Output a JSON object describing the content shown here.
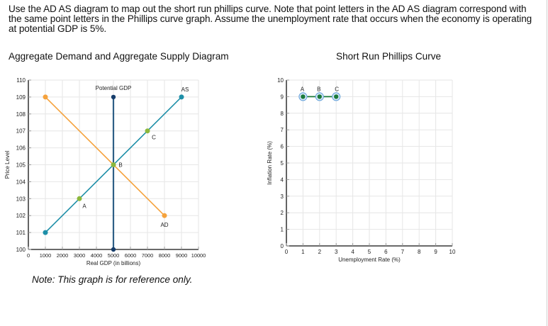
{
  "instructions": "Use the AD AS diagram to map out the short run phillips curve. Note that point letters in the AD AS diagram correspond with the same point letters in the Phillips curve graph. Assume the unemployment rate that occurs when the economy is operating at potential GDP is 5%.",
  "adas_title": "Aggregate Demand and Aggregate Supply Diagram",
  "phillips_title": "Short Run Phillips Curve",
  "note": "Note: This graph is for reference only.",
  "colors": {
    "ad": "#f5a23c",
    "as": "#1e8fa8",
    "potential_gdp": "#2e5f86",
    "potential_gdp_dot": "#163d6b",
    "point": "#8cb83c",
    "phillips_line": "#1a7a3a",
    "phillips_ring": "#6fa8dc"
  },
  "chart_data": [
    {
      "type": "line",
      "title": "Aggregate Demand and Aggregate Supply Diagram",
      "xlabel": "Real GDP (in billions)",
      "ylabel": "Price Level",
      "xlim": [
        0,
        10000
      ],
      "ylim": [
        100,
        110
      ],
      "x_ticks": [
        "0",
        "1000",
        "2000",
        "3000",
        "4000",
        "5000",
        "6000",
        "7000",
        "8000",
        "9000",
        "10000"
      ],
      "y_ticks": [
        "100",
        "101",
        "102",
        "103",
        "104",
        "105",
        "106",
        "107",
        "108",
        "109",
        "110"
      ],
      "grid": true,
      "series": [
        {
          "name": "AD",
          "points": [
            [
              1000,
              109
            ],
            [
              8000,
              102
            ]
          ]
        },
        {
          "name": "AS",
          "points": [
            [
              1000,
              101
            ],
            [
              9000,
              109
            ]
          ]
        },
        {
          "name": "Potential GDP",
          "points": [
            [
              5000,
              100
            ],
            [
              5000,
              109
            ]
          ]
        }
      ],
      "labeled_points": [
        {
          "label": "A",
          "x": 3000,
          "y": 103
        },
        {
          "label": "B",
          "x": 5000,
          "y": 105
        },
        {
          "label": "C",
          "x": 7000,
          "y": 107
        }
      ]
    },
    {
      "type": "line",
      "title": "Short Run Phillips Curve",
      "xlabel": "Unemployment Rate (%)",
      "ylabel": "Inflation Rate (%)",
      "xlim": [
        0,
        10
      ],
      "ylim": [
        0,
        10
      ],
      "x_ticks": [
        "0",
        "1",
        "2",
        "3",
        "4",
        "5",
        "6",
        "7",
        "8",
        "9",
        "10"
      ],
      "y_ticks": [
        "0",
        "1",
        "2",
        "3",
        "4",
        "5",
        "6",
        "7",
        "8",
        "9",
        "10"
      ],
      "grid": true,
      "series": [
        {
          "name": "Phillips Curve",
          "points": [
            [
              1,
              9
            ],
            [
              2,
              9
            ],
            [
              3,
              9
            ]
          ]
        }
      ],
      "labeled_points": [
        {
          "label": "A",
          "x": 1,
          "y": 9
        },
        {
          "label": "B",
          "x": 2,
          "y": 9
        },
        {
          "label": "C",
          "x": 3,
          "y": 9
        }
      ]
    }
  ]
}
